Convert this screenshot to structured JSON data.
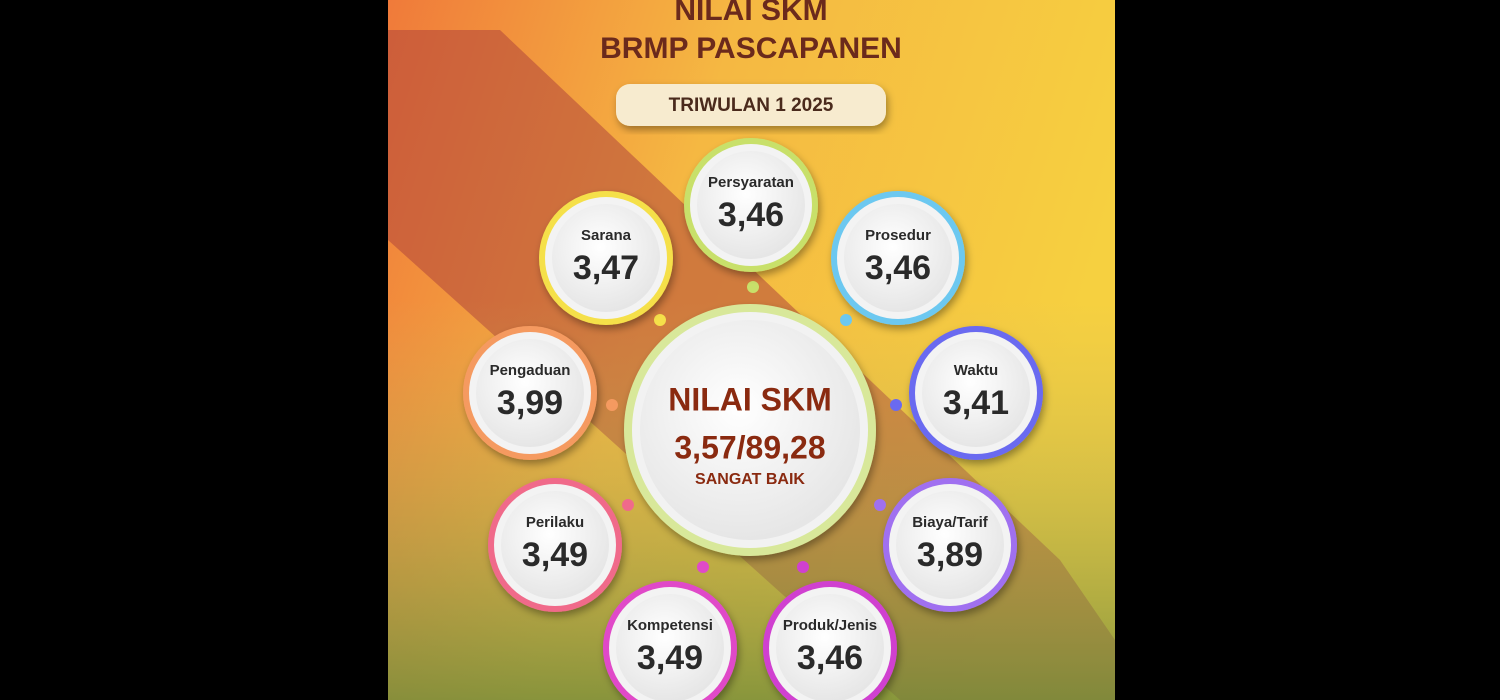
{
  "header": {
    "title_line1": "NILAI SKM",
    "title_line2": "BRMP PASCAPANEN",
    "period": "TRIWULAN 1 2025"
  },
  "center": {
    "label": "NILAI SKM",
    "score": "3,57/89,28",
    "category": "SANGAT BAIK"
  },
  "items": [
    {
      "label": "Persyaratan",
      "value": "3,46"
    },
    {
      "label": "Sarana",
      "value": "3,47"
    },
    {
      "label": "Prosedur",
      "value": "3,46"
    },
    {
      "label": "Pengaduan",
      "value": "3,99"
    },
    {
      "label": "Waktu",
      "value": "3,41"
    },
    {
      "label": "Perilaku",
      "value": "3,49"
    },
    {
      "label": "Biaya/Tarif",
      "value": "3,89"
    },
    {
      "label": "Kompetensi",
      "value": "3,49"
    },
    {
      "label": "Produk/Jenis",
      "value": "3,46"
    }
  ]
}
